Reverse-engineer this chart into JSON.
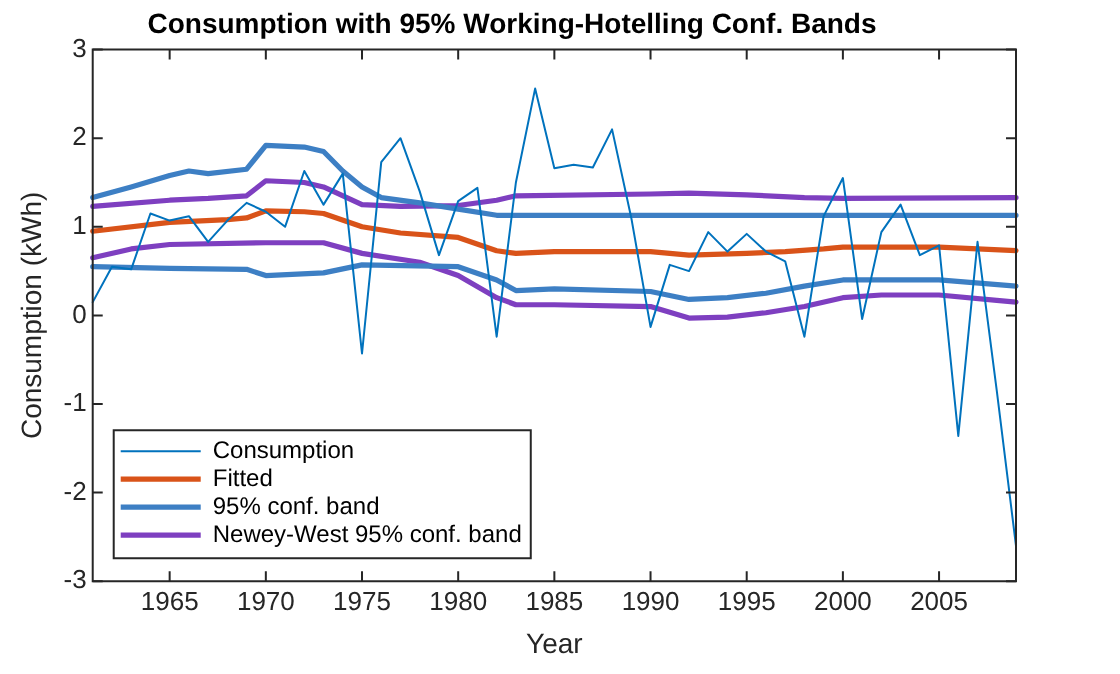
{
  "chart_data": {
    "type": "line",
    "title": "Consumption with 95% Working-Hotelling Conf. Bands",
    "xlabel": "Year",
    "ylabel": "Consumption (kWh)",
    "xlim": [
      1961,
      2009
    ],
    "xticks": [
      1965,
      1970,
      1975,
      1980,
      1985,
      1990,
      1995,
      2000,
      2005
    ],
    "ylim": [
      -3,
      3
    ],
    "yticks": [
      -3,
      -2,
      -1,
      0,
      1,
      2,
      3
    ],
    "grid": false,
    "legend": "bottom left",
    "marker": "none",
    "line_style": "solid",
    "series": [
      {
        "name": "Consumption",
        "color": "#0072bd",
        "x": [
          1961,
          1962,
          1963,
          1964,
          1965,
          1966,
          1967,
          1968,
          1969,
          1970,
          1971,
          1972,
          1973,
          1974,
          1975,
          1976,
          1977,
          1978,
          1979,
          1980,
          1981,
          1982,
          1983,
          1984,
          1985,
          1986,
          1987,
          1988,
          1989,
          1990,
          1991,
          1992,
          1993,
          1994,
          1995,
          1996,
          1997,
          1998,
          1999,
          2000,
          2001,
          2002,
          2003,
          2004,
          2005,
          2006,
          2007,
          2008,
          2009
        ],
        "values": [
          0.15,
          0.55,
          0.52,
          1.15,
          1.07,
          1.12,
          0.83,
          1.07,
          1.27,
          1.17,
          1.0,
          1.63,
          1.25,
          1.6,
          -0.43,
          1.73,
          2.0,
          1.4,
          0.68,
          1.29,
          1.44,
          -0.24,
          1.5,
          2.56,
          1.66,
          1.7,
          1.67,
          2.1,
          1.1,
          -0.13,
          0.57,
          0.5,
          0.94,
          0.72,
          0.92,
          0.72,
          0.61,
          -0.24,
          1.12,
          1.55,
          -0.04,
          0.94,
          1.25,
          0.68,
          0.79,
          -1.36,
          0.83,
          -0.85,
          -2.6
        ]
      },
      {
        "name": "Fitted",
        "color": "#d95319",
        "x": [
          1961,
          1965,
          1968,
          1969,
          1970,
          1972,
          1973,
          1975,
          1977,
          1980,
          1982,
          1983,
          1985,
          1990,
          1992,
          1995,
          1997,
          1999,
          2000,
          2005,
          2009
        ],
        "values": [
          0.95,
          1.05,
          1.08,
          1.1,
          1.18,
          1.17,
          1.15,
          1.0,
          0.93,
          0.88,
          0.73,
          0.7,
          0.72,
          0.72,
          0.68,
          0.7,
          0.72,
          0.75,
          0.77,
          0.77,
          0.73
        ]
      },
      {
        "name": "95% conf. band",
        "color": "#3d7fc4",
        "x": [
          1961,
          1963,
          1965,
          1966,
          1967,
          1969,
          1970,
          1972,
          1973,
          1974,
          1975,
          1976,
          1978,
          1980,
          1982,
          2009
        ],
        "values": [
          1.33,
          1.45,
          1.58,
          1.63,
          1.6,
          1.65,
          1.92,
          1.9,
          1.85,
          1.63,
          1.45,
          1.33,
          1.27,
          1.2,
          1.13,
          1.13
        ]
      },
      {
        "name": "Newey-West 95% conf. band",
        "color": "#7e3fc0",
        "x": [
          1961,
          1965,
          1967,
          1969,
          1970,
          1972,
          1973,
          1975,
          1977,
          1980,
          1982,
          1983,
          1990,
          1992,
          1995,
          1998,
          2000,
          2009
        ],
        "values": [
          1.23,
          1.3,
          1.32,
          1.35,
          1.52,
          1.5,
          1.45,
          1.25,
          1.23,
          1.24,
          1.3,
          1.35,
          1.37,
          1.38,
          1.36,
          1.33,
          1.32,
          1.33
        ]
      },
      {
        "color": "#3d7fc4",
        "x": [
          1961,
          1965,
          1969,
          1970,
          1973,
          1975,
          1980,
          1982,
          1983,
          1985,
          1990,
          1992,
          1994,
          1996,
          1998,
          2000,
          2003,
          2005,
          2009
        ],
        "values": [
          0.55,
          0.53,
          0.52,
          0.45,
          0.48,
          0.57,
          0.55,
          0.4,
          0.28,
          0.3,
          0.27,
          0.18,
          0.2,
          0.25,
          0.33,
          0.4,
          0.4,
          0.4,
          0.33
        ]
      },
      {
        "color": "#7e3fc0",
        "x": [
          1961,
          1963,
          1965,
          1970,
          1973,
          1975,
          1978,
          1980,
          1982,
          1983,
          1985,
          1990,
          1992,
          1994,
          1996,
          1998,
          2000,
          2002,
          2005,
          2008,
          2009
        ],
        "values": [
          0.65,
          0.75,
          0.8,
          0.82,
          0.82,
          0.7,
          0.6,
          0.45,
          0.2,
          0.12,
          0.12,
          0.1,
          -0.03,
          -0.02,
          0.03,
          0.1,
          0.2,
          0.23,
          0.23,
          0.17,
          0.15
        ]
      }
    ]
  }
}
